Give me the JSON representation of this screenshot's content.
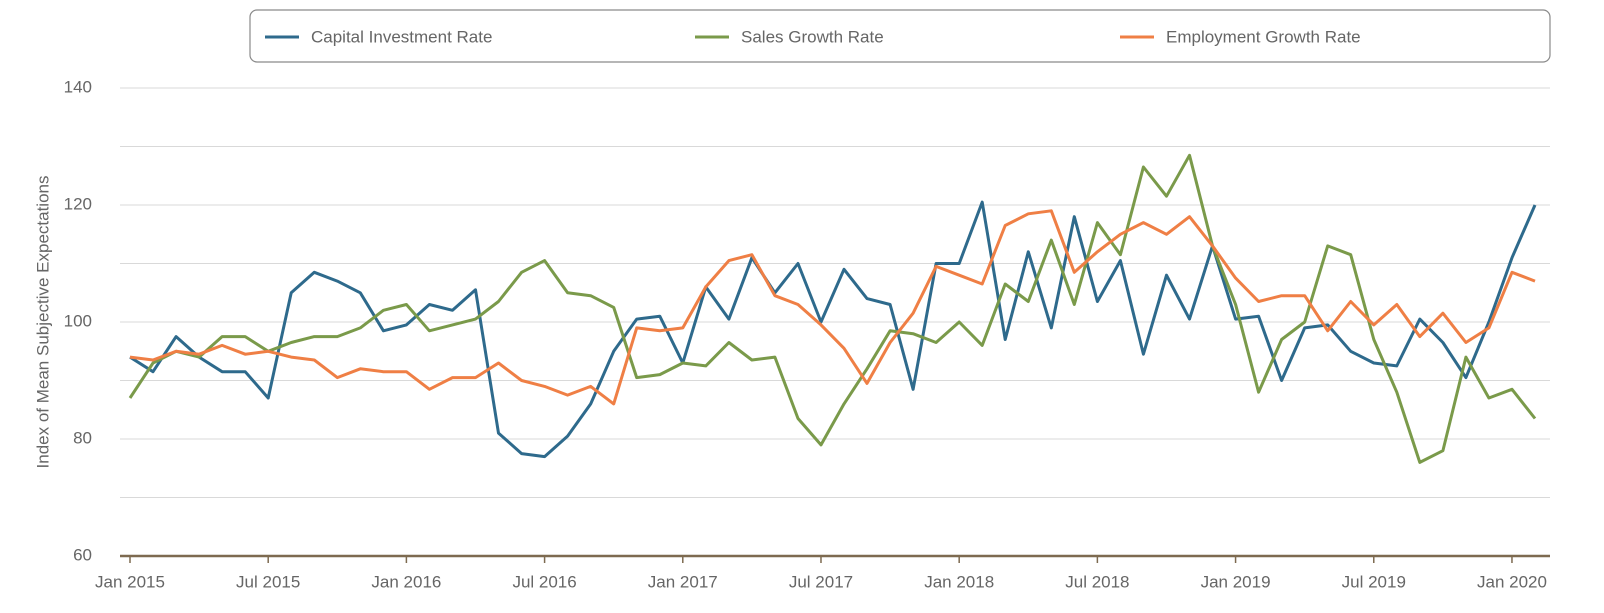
{
  "chart_data": {
    "type": "line",
    "y_label": "Index of Mean Subjective Expectations",
    "x": [
      "2015-01",
      "2015-02",
      "2015-03",
      "2015-04",
      "2015-05",
      "2015-06",
      "2015-07",
      "2015-08",
      "2015-09",
      "2015-10",
      "2015-11",
      "2015-12",
      "2016-01",
      "2016-02",
      "2016-03",
      "2016-04",
      "2016-05",
      "2016-06",
      "2016-07",
      "2016-08",
      "2016-09",
      "2016-10",
      "2016-11",
      "2016-12",
      "2017-01",
      "2017-02",
      "2017-03",
      "2017-04",
      "2017-05",
      "2017-06",
      "2017-07",
      "2017-08",
      "2017-09",
      "2017-10",
      "2017-11",
      "2017-12",
      "2018-01",
      "2018-02",
      "2018-03",
      "2018-04",
      "2018-05",
      "2018-06",
      "2018-07",
      "2018-08",
      "2018-09",
      "2018-10",
      "2018-11",
      "2018-12",
      "2019-01",
      "2019-02",
      "2019-03",
      "2019-04",
      "2019-05",
      "2019-06",
      "2019-07",
      "2019-08",
      "2019-09",
      "2019-10",
      "2019-11",
      "2019-12",
      "2020-01",
      "2020-02"
    ],
    "series": [
      {
        "name": "Capital Investment Rate",
        "color": "#2e6a8c",
        "values": [
          94,
          91.5,
          97.5,
          94,
          91.5,
          91.5,
          87,
          105,
          108.5,
          107,
          105,
          98.5,
          99.5,
          103,
          102,
          105.5,
          81,
          77.5,
          77,
          80.5,
          86,
          95,
          100.5,
          101,
          93,
          106,
          100.5,
          111,
          105,
          110,
          100,
          109,
          104,
          103,
          88.5,
          110,
          110,
          120.5,
          97,
          112,
          99,
          118,
          103.5,
          110.5,
          94.5,
          108,
          100.5,
          113,
          100.5,
          101,
          90,
          99,
          99.5,
          95,
          93,
          92.5,
          100.5,
          96.5,
          90.5,
          100,
          111,
          120
        ]
      },
      {
        "name": "Sales Growth Rate",
        "color": "#7a9a4a",
        "values": [
          87,
          93,
          95,
          94,
          97.5,
          97.5,
          95,
          96.5,
          97.5,
          97.5,
          99,
          102,
          103,
          98.5,
          99.5,
          100.5,
          103.5,
          108.5,
          110.5,
          105,
          104.5,
          102.5,
          90.5,
          91,
          93,
          92.5,
          96.5,
          93.5,
          94,
          83.5,
          79,
          86,
          92,
          98.5,
          98,
          96.5,
          100,
          96,
          106.5,
          103.5,
          114,
          103,
          117,
          111.5,
          126.5,
          121.5,
          128.5,
          113,
          103,
          88,
          97,
          100,
          113,
          111.5,
          97,
          88,
          76,
          78,
          94,
          87,
          88.5,
          83.5
        ]
      },
      {
        "name": "Employment Growth Rate",
        "color": "#ef7f45",
        "values": [
          94,
          93.5,
          95,
          94.5,
          96,
          94.5,
          95,
          94,
          93.5,
          90.5,
          92,
          91.5,
          91.5,
          88.5,
          90.5,
          90.5,
          93,
          90,
          89,
          87.5,
          89,
          86,
          99,
          98.5,
          99,
          106,
          110.5,
          111.5,
          104.5,
          103,
          99.5,
          95.5,
          89.5,
          96.5,
          101.5,
          109.5,
          108,
          106.5,
          116.5,
          118.5,
          119,
          108.5,
          112,
          115,
          117,
          115,
          118,
          113,
          107.5,
          103.5,
          104.5,
          104.5,
          98.5,
          103.5,
          99.5,
          103,
          97.5,
          101.5,
          96.5,
          99,
          108.5,
          107
        ]
      }
    ],
    "ylim": [
      60,
      140
    ],
    "yticks": [
      60,
      80,
      100,
      120,
      140
    ],
    "minor_gridlines": [
      70,
      90,
      110,
      130
    ],
    "xticks": [
      {
        "value": "2015-01",
        "label": "Jan 2015"
      },
      {
        "value": "2015-07",
        "label": "Jul 2015"
      },
      {
        "value": "2016-01",
        "label": "Jan 2016"
      },
      {
        "value": "2016-07",
        "label": "Jul 2016"
      },
      {
        "value": "2017-01",
        "label": "Jan 2017"
      },
      {
        "value": "2017-07",
        "label": "Jul 2017"
      },
      {
        "value": "2018-01",
        "label": "Jan 2018"
      },
      {
        "value": "2018-07",
        "label": "Jul 2018"
      },
      {
        "value": "2019-01",
        "label": "Jan 2019"
      },
      {
        "value": "2019-07",
        "label": "Jul 2019"
      },
      {
        "value": "2020-01",
        "label": "Jan 2020"
      }
    ],
    "grid": true,
    "legend": "top"
  }
}
